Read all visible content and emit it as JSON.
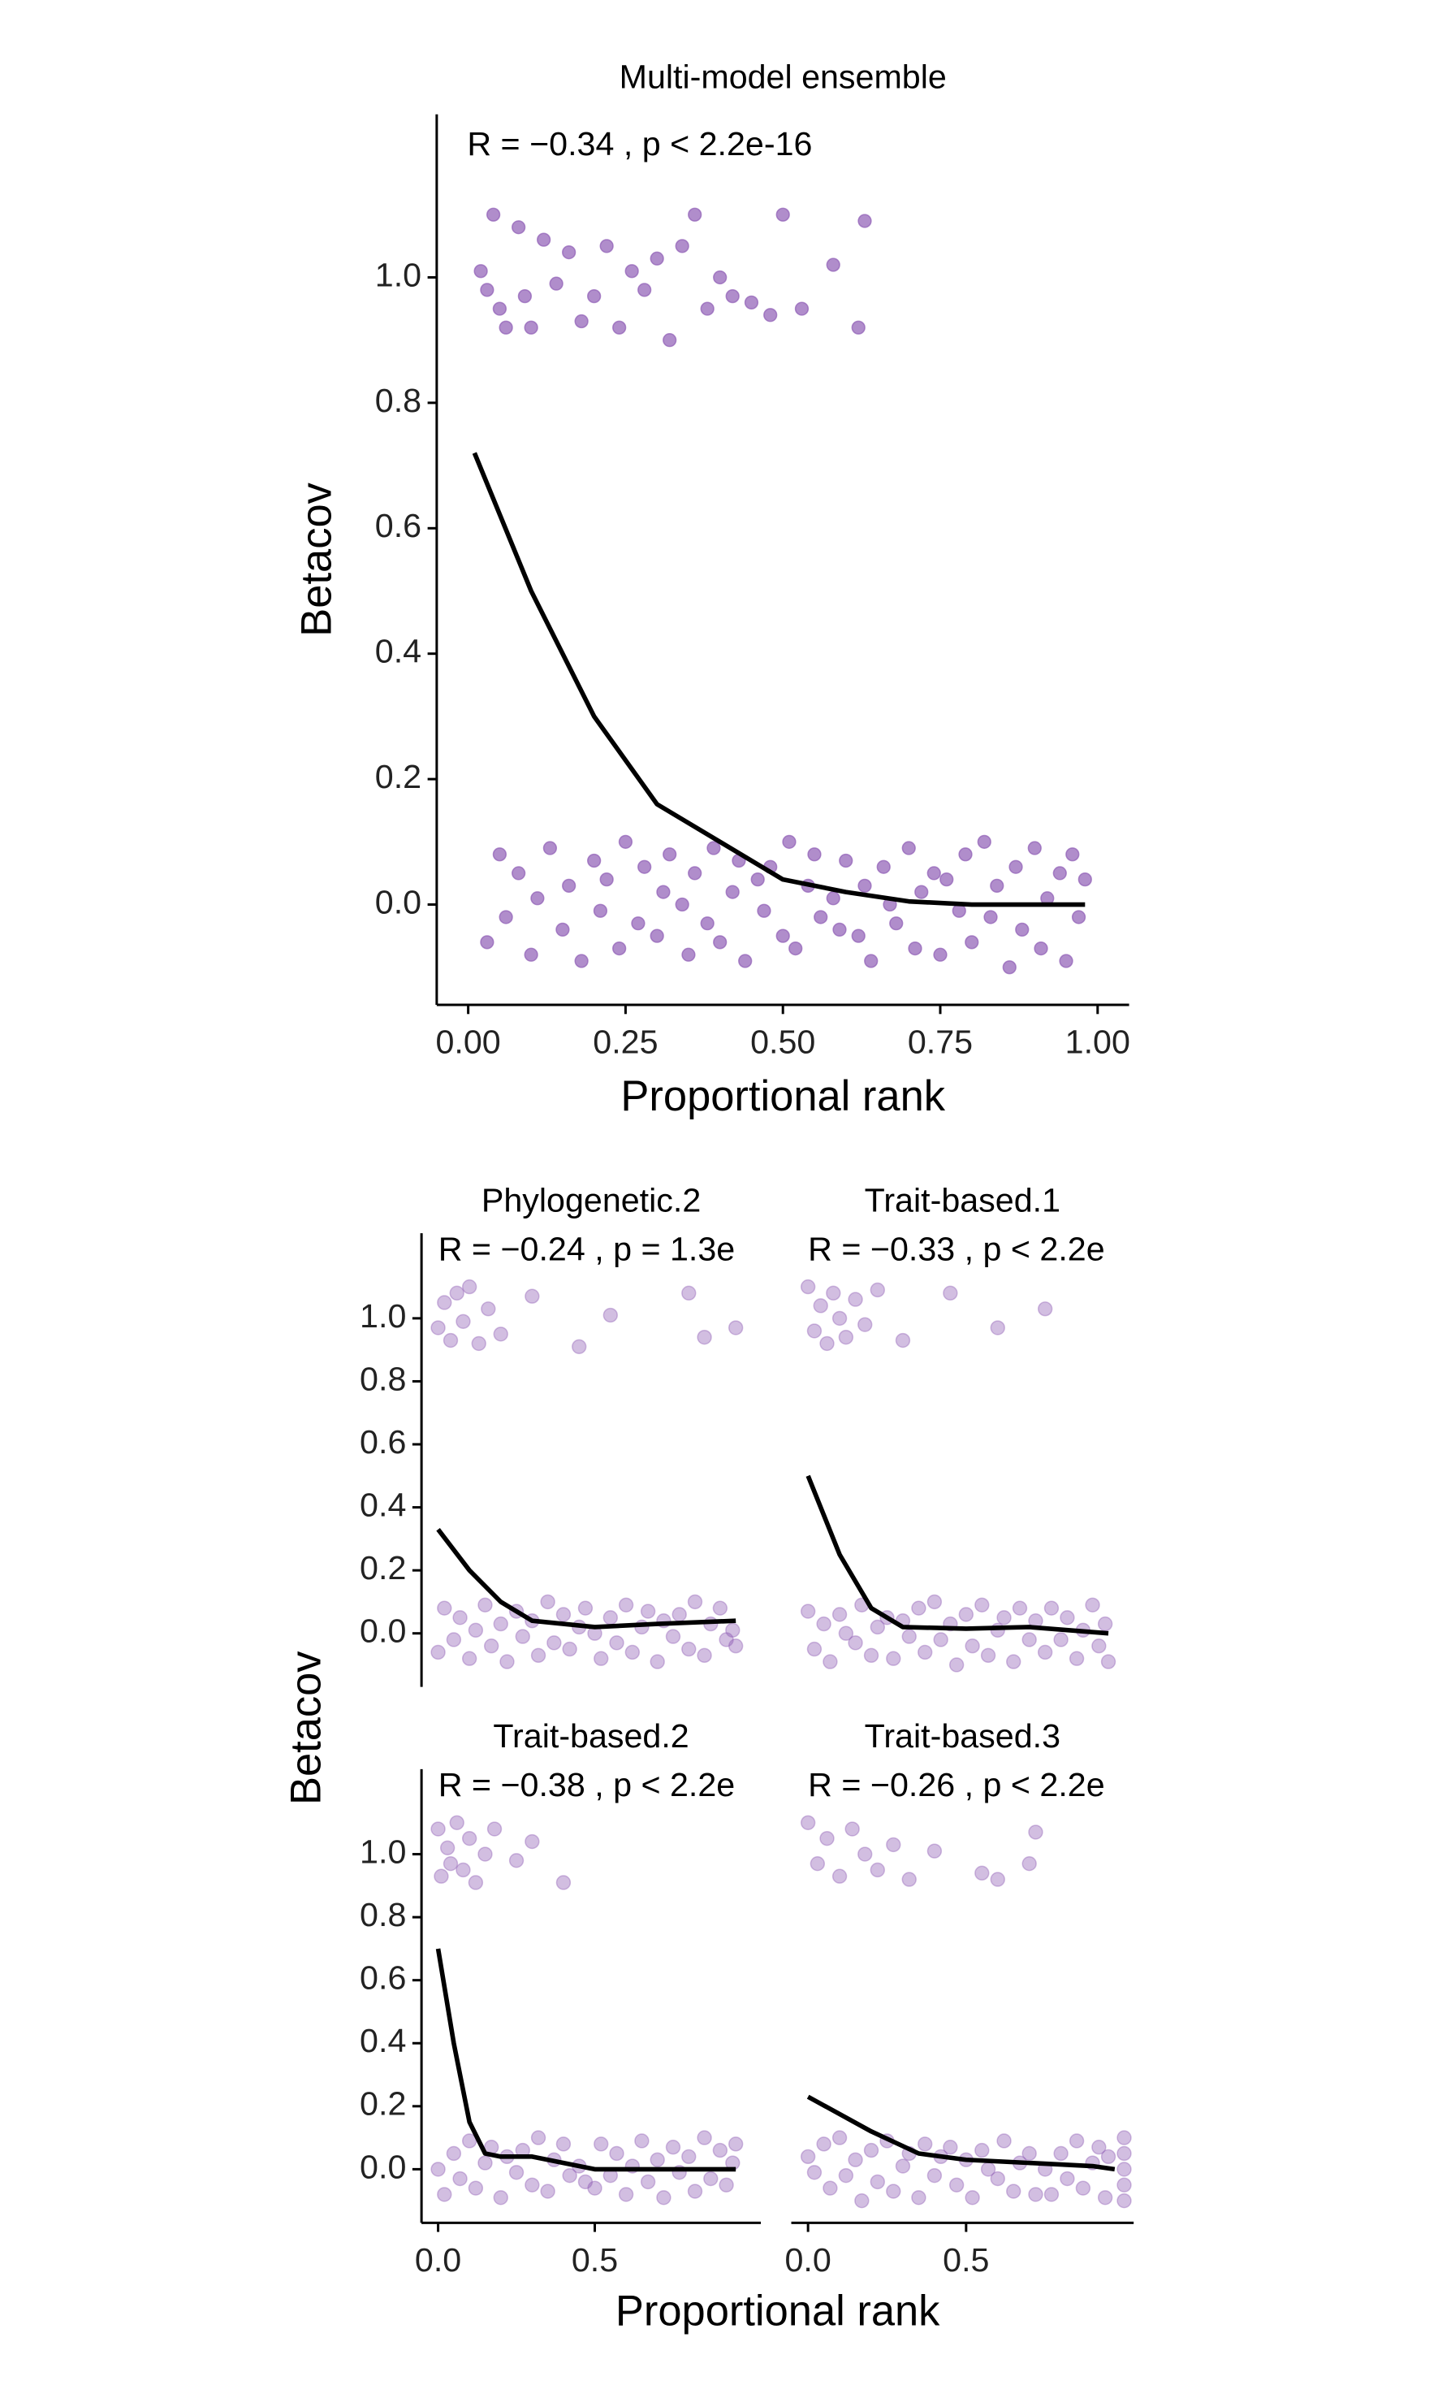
{
  "chart_data": [
    {
      "type": "scatter",
      "title": "Multi-model ensemble",
      "annotation": "R = −0.34 , p < 2.2e-16",
      "x_label": "Proportional rank",
      "y_label": "Betacov",
      "xlim": [
        -0.05,
        1.05
      ],
      "ylim": [
        -0.16,
        1.26
      ],
      "xticks": [
        {
          "value": 0,
          "label": "0.00"
        },
        {
          "value": 0.25,
          "label": "0.25"
        },
        {
          "value": 0.5,
          "label": "0.50"
        },
        {
          "value": 0.75,
          "label": "0.75"
        },
        {
          "value": 1,
          "label": "1.00"
        }
      ],
      "yticks": [
        {
          "value": 0,
          "label": "0.0"
        },
        {
          "value": 0.2,
          "label": "0.2"
        },
        {
          "value": 0.4,
          "label": "0.4"
        },
        {
          "value": 0.6,
          "label": "0.6"
        },
        {
          "value": 0.8,
          "label": "0.8"
        },
        {
          "value": 1,
          "label": "1.0"
        }
      ],
      "color": "#8e5db5",
      "alpha": 0.7,
      "points": [
        {
          "x": [
            0.02,
            0.03,
            0.04,
            0.05,
            0.06,
            0.08,
            0.09,
            0.1,
            0.12,
            0.14,
            0.16,
            0.18,
            0.2,
            0.22,
            0.24,
            0.26,
            0.28,
            0.3,
            0.32,
            0.34,
            0.36,
            0.38,
            0.4,
            0.42,
            0.45,
            0.48,
            0.5,
            0.53,
            0.58,
            0.62,
            0.63
          ],
          "y": [
            1.01,
            0.98,
            1.1,
            0.95,
            0.92,
            1.08,
            0.97,
            0.92,
            1.06,
            0.99,
            1.04,
            0.93,
            0.97,
            1.05,
            0.92,
            1.01,
            0.98,
            1.03,
            0.9,
            1.05,
            1.1,
            0.95,
            1.0,
            0.97,
            0.96,
            0.94,
            1.1,
            0.95,
            1.02,
            0.92,
            1.09
          ]
        },
        {
          "x": [
            0.03,
            0.05,
            0.06,
            0.08,
            0.1,
            0.11,
            0.13,
            0.15,
            0.16,
            0.18,
            0.2,
            0.21,
            0.22,
            0.24,
            0.25,
            0.27,
            0.28,
            0.3,
            0.31,
            0.32,
            0.34,
            0.35,
            0.36,
            0.38,
            0.39,
            0.4,
            0.42,
            0.43,
            0.44,
            0.46,
            0.47,
            0.48,
            0.5,
            0.51,
            0.52,
            0.54,
            0.55,
            0.56,
            0.58,
            0.59,
            0.6,
            0.62,
            0.63,
            0.64,
            0.66,
            0.67,
            0.68,
            0.7,
            0.71,
            0.72,
            0.74,
            0.75,
            0.76,
            0.78,
            0.79,
            0.8,
            0.82,
            0.83,
            0.84,
            0.86,
            0.87,
            0.88,
            0.9,
            0.91,
            0.92,
            0.94,
            0.95,
            0.96,
            0.97,
            0.98
          ],
          "y": [
            -0.06,
            0.08,
            -0.02,
            0.05,
            -0.08,
            0.01,
            0.09,
            -0.04,
            0.03,
            -0.09,
            0.07,
            -0.01,
            0.04,
            -0.07,
            0.1,
            -0.03,
            0.06,
            -0.05,
            0.02,
            0.08,
            0.0,
            -0.08,
            0.05,
            -0.03,
            0.09,
            -0.06,
            0.02,
            0.07,
            -0.09,
            0.04,
            -0.01,
            0.06,
            -0.05,
            0.1,
            -0.07,
            0.03,
            0.08,
            -0.02,
            0.01,
            -0.04,
            0.07,
            -0.05,
            0.03,
            -0.09,
            0.06,
            0.0,
            -0.03,
            0.09,
            -0.07,
            0.02,
            0.05,
            -0.08,
            0.04,
            -0.01,
            0.08,
            -0.06,
            0.1,
            -0.02,
            0.03,
            -0.1,
            0.06,
            -0.04,
            0.09,
            -0.07,
            0.01,
            0.05,
            -0.09,
            0.08,
            -0.02,
            0.04
          ]
        }
      ],
      "curve": {
        "x": [
          0.01,
          0.1,
          0.2,
          0.3,
          0.4,
          0.5,
          0.6,
          0.7,
          0.8,
          0.98
        ],
        "y": [
          0.72,
          0.5,
          0.3,
          0.16,
          0.1,
          0.04,
          0.02,
          0.005,
          0,
          0
        ]
      }
    },
    {
      "type": "scatter",
      "title": "Phylogenetic.2",
      "annotation": "R = −0.24 , p = 1.3e",
      "xlim": [
        -0.053,
        1.03
      ],
      "ylim": [
        -0.17,
        1.27
      ],
      "yticks": [
        {
          "value": 0,
          "label": "0.0"
        },
        {
          "value": 0.2,
          "label": "0.2"
        },
        {
          "value": 0.4,
          "label": "0.4"
        },
        {
          "value": 0.6,
          "label": "0.6"
        },
        {
          "value": 0.8,
          "label": "0.8"
        },
        {
          "value": 1,
          "label": "1.0"
        }
      ],
      "color": "#8e5db5",
      "alpha": 0.4,
      "points": [
        {
          "x": [
            0.0,
            0.02,
            0.04,
            0.06,
            0.08,
            0.1,
            0.13,
            0.16,
            0.2,
            0.3,
            0.45,
            0.55,
            0.8,
            0.85,
            0.95
          ],
          "y": [
            0.97,
            1.05,
            0.93,
            1.08,
            0.99,
            1.1,
            0.92,
            1.03,
            0.95,
            1.07,
            0.91,
            1.01,
            1.08,
            0.94,
            0.97
          ]
        },
        {
          "x": [
            0,
            0.02,
            0.05,
            0.07,
            0.1,
            0.12,
            0.15,
            0.17,
            0.2,
            0.22,
            0.25,
            0.27,
            0.3,
            0.32,
            0.35,
            0.37,
            0.4,
            0.42,
            0.45,
            0.47,
            0.5,
            0.52,
            0.55,
            0.57,
            0.6,
            0.62,
            0.65,
            0.67,
            0.7,
            0.72,
            0.75,
            0.77,
            0.8,
            0.82,
            0.85,
            0.87,
            0.9,
            0.92,
            0.94,
            0.95
          ],
          "y": [
            -0.06,
            0.08,
            -0.02,
            0.05,
            -0.08,
            0.01,
            0.09,
            -0.04,
            0.03,
            -0.09,
            0.07,
            -0.01,
            0.04,
            -0.07,
            0.1,
            -0.03,
            0.06,
            -0.05,
            0.02,
            0.08,
            0.0,
            -0.08,
            0.05,
            -0.03,
            0.09,
            -0.06,
            0.02,
            0.07,
            -0.09,
            0.04,
            -0.01,
            0.06,
            -0.05,
            0.1,
            -0.07,
            0.03,
            0.08,
            -0.02,
            0.01,
            -0.04
          ]
        }
      ],
      "curve": {
        "x": [
          0,
          0.1,
          0.2,
          0.3,
          0.5,
          0.7,
          0.95
        ],
        "y": [
          0.33,
          0.2,
          0.1,
          0.04,
          0.02,
          0.03,
          0.04
        ]
      }
    },
    {
      "type": "scatter",
      "title": "Trait-based.1",
      "annotation": "R = −0.33 , p < 2.2e",
      "xlim": [
        -0.053,
        1.03
      ],
      "ylim": [
        -0.17,
        1.27
      ],
      "color": "#8e5db5",
      "alpha": 0.4,
      "points": [
        {
          "x": [
            0.0,
            0.02,
            0.04,
            0.06,
            0.08,
            0.1,
            0.12,
            0.15,
            0.18,
            0.22,
            0.3,
            0.45,
            0.6,
            0.75
          ],
          "y": [
            1.1,
            0.96,
            1.04,
            0.92,
            1.08,
            1.0,
            0.94,
            1.06,
            0.98,
            1.09,
            0.93,
            1.08,
            0.97,
            1.03
          ]
        },
        {
          "x": [
            0,
            0.02,
            0.05,
            0.07,
            0.1,
            0.12,
            0.15,
            0.17,
            0.2,
            0.22,
            0.25,
            0.27,
            0.3,
            0.32,
            0.35,
            0.37,
            0.4,
            0.42,
            0.45,
            0.47,
            0.5,
            0.52,
            0.55,
            0.57,
            0.6,
            0.62,
            0.65,
            0.67,
            0.7,
            0.72,
            0.75,
            0.77,
            0.8,
            0.82,
            0.85,
            0.87,
            0.9,
            0.92,
            0.94,
            0.95
          ],
          "y": [
            0.07,
            -0.05,
            0.03,
            -0.09,
            0.06,
            0.0,
            -0.03,
            0.09,
            -0.07,
            0.02,
            0.05,
            -0.08,
            0.04,
            -0.01,
            0.08,
            -0.06,
            0.1,
            -0.02,
            0.03,
            -0.1,
            0.06,
            -0.04,
            0.09,
            -0.07,
            0.01,
            0.05,
            -0.09,
            0.08,
            -0.02,
            0.04,
            -0.06,
            0.08,
            -0.02,
            0.05,
            -0.08,
            0.01,
            0.09,
            -0.04,
            0.03,
            -0.09
          ]
        }
      ],
      "curve": {
        "x": [
          0,
          0.1,
          0.2,
          0.3,
          0.5,
          0.7,
          0.95
        ],
        "y": [
          0.5,
          0.25,
          0.08,
          0.02,
          0.015,
          0.02,
          0
        ]
      }
    },
    {
      "type": "scatter",
      "title": "Trait-based.2",
      "annotation": "R = −0.38 , p < 2.2e",
      "xlim": [
        -0.053,
        1.03
      ],
      "ylim": [
        -0.17,
        1.27
      ],
      "xticks": [
        {
          "value": 0,
          "label": "0.0"
        },
        {
          "value": 0.5,
          "label": "0.5"
        }
      ],
      "yticks": [
        {
          "value": 0,
          "label": "0.0"
        },
        {
          "value": 0.2,
          "label": "0.2"
        },
        {
          "value": 0.4,
          "label": "0.4"
        },
        {
          "value": 0.6,
          "label": "0.6"
        },
        {
          "value": 0.8,
          "label": "0.8"
        },
        {
          "value": 1,
          "label": "1.0"
        }
      ],
      "color": "#8e5db5",
      "alpha": 0.4,
      "points": [
        {
          "x": [
            0.0,
            0.01,
            0.03,
            0.04,
            0.06,
            0.08,
            0.1,
            0.12,
            0.15,
            0.18,
            0.25,
            0.3,
            0.4
          ],
          "y": [
            1.08,
            0.93,
            1.02,
            0.97,
            1.1,
            0.95,
            1.05,
            0.91,
            1.0,
            1.08,
            0.98,
            1.04,
            0.91
          ]
        },
        {
          "x": [
            0,
            0.02,
            0.05,
            0.07,
            0.1,
            0.12,
            0.15,
            0.17,
            0.2,
            0.22,
            0.25,
            0.27,
            0.3,
            0.32,
            0.35,
            0.37,
            0.4,
            0.42,
            0.45,
            0.47,
            0.5,
            0.52,
            0.55,
            0.57,
            0.6,
            0.62,
            0.65,
            0.67,
            0.7,
            0.72,
            0.75,
            0.77,
            0.8,
            0.82,
            0.85,
            0.87,
            0.9,
            0.92,
            0.94,
            0.95
          ],
          "y": [
            0.0,
            -0.08,
            0.05,
            -0.03,
            0.09,
            -0.06,
            0.02,
            0.07,
            -0.09,
            0.04,
            -0.01,
            0.06,
            -0.05,
            0.1,
            -0.07,
            0.03,
            0.08,
            -0.02,
            0.01,
            -0.04,
            -0.06,
            0.08,
            -0.02,
            0.05,
            -0.08,
            0.01,
            0.09,
            -0.04,
            0.03,
            -0.09,
            0.07,
            -0.01,
            0.04,
            -0.07,
            0.1,
            -0.03,
            0.06,
            -0.05,
            0.02,
            0.08
          ]
        }
      ],
      "curve": {
        "x": [
          0,
          0.05,
          0.1,
          0.15,
          0.2,
          0.3,
          0.4,
          0.5,
          0.95
        ],
        "y": [
          0.7,
          0.4,
          0.15,
          0.05,
          0.04,
          0.04,
          0.02,
          0,
          0
        ]
      }
    },
    {
      "type": "scatter",
      "title": "Trait-based.3",
      "annotation": "R = −0.26 , p < 2.2e",
      "xlim": [
        -0.053,
        1.03
      ],
      "ylim": [
        -0.17,
        1.27
      ],
      "xticks": [
        {
          "value": 0,
          "label": "0.0"
        },
        {
          "value": 0.5,
          "label": "0.5"
        }
      ],
      "color": "#8e5db5",
      "alpha": 0.4,
      "points": [
        {
          "x": [
            0.0,
            0.03,
            0.06,
            0.1,
            0.14,
            0.18,
            0.22,
            0.27,
            0.32,
            0.4,
            0.55,
            0.6,
            0.7,
            0.72
          ],
          "y": [
            1.1,
            0.97,
            1.05,
            0.93,
            1.08,
            1.0,
            0.95,
            1.03,
            0.92,
            1.01,
            0.94,
            0.92,
            0.97,
            1.07
          ]
        },
        {
          "x": [
            0,
            0.02,
            0.05,
            0.07,
            0.1,
            0.12,
            0.15,
            0.17,
            0.2,
            0.22,
            0.25,
            0.27,
            0.3,
            0.32,
            0.35,
            0.37,
            0.4,
            0.42,
            0.45,
            0.47,
            0.5,
            0.52,
            0.55,
            0.57,
            0.6,
            0.62,
            0.65,
            0.67,
            0.7,
            0.72,
            0.75,
            0.77,
            0.8,
            0.82,
            0.85,
            0.87,
            0.9,
            0.92,
            0.94,
            0.95,
            1,
            1,
            1,
            1,
            1
          ],
          "y": [
            0.04,
            -0.01,
            0.08,
            -0.06,
            0.1,
            -0.02,
            0.03,
            -0.1,
            0.06,
            -0.04,
            0.09,
            -0.07,
            0.01,
            0.05,
            -0.09,
            0.08,
            -0.02,
            0.04,
            0.07,
            -0.05,
            0.03,
            -0.09,
            0.06,
            0.0,
            -0.03,
            0.09,
            -0.07,
            0.02,
            0.05,
            -0.08,
            0.0,
            -0.08,
            0.05,
            -0.03,
            0.09,
            -0.06,
            0.02,
            0.07,
            -0.09,
            0.04,
            -0.1,
            -0.05,
            0,
            0.05,
            0.1
          ]
        }
      ],
      "curve": {
        "x": [
          0,
          0.2,
          0.35,
          0.5,
          0.7,
          0.9,
          0.97
        ],
        "y": [
          0.23,
          0.12,
          0.05,
          0.03,
          0.02,
          0.01,
          0
        ]
      }
    }
  ],
  "facet_x_label": "Proportional rank",
  "facet_y_label": "Betacov"
}
